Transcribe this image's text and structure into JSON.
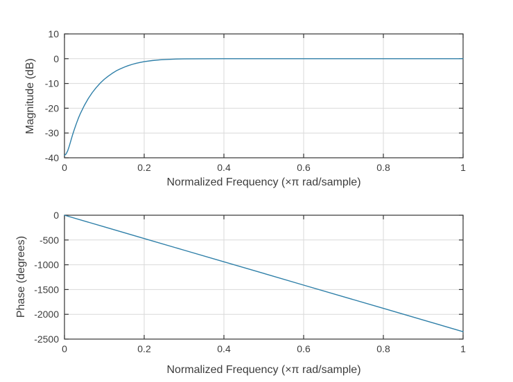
{
  "figure": {
    "background": "#ffffff",
    "line_color": "#2e7fa8",
    "grid_color": "#d9d9d9",
    "axis_color": "#333333",
    "text_color": "#3c3c3c",
    "tick_font_size": 14,
    "label_font_size": 16
  },
  "chart_data": [
    {
      "type": "line",
      "name": "magnitude-plot",
      "title": "",
      "xlabel": "Normalized Frequency (×π rad/sample)",
      "ylabel": "Magnitude (dB)",
      "xlim": [
        0,
        1
      ],
      "ylim": [
        -40,
        10
      ],
      "xticks": [
        0,
        0.2,
        0.4,
        0.6,
        0.8,
        1
      ],
      "xtick_labels": [
        "0",
        "0.2",
        "0.4",
        "0.6",
        "0.8",
        "1"
      ],
      "yticks": [
        10,
        0,
        -10,
        -20,
        -30,
        -40
      ],
      "ytick_labels": [
        "10",
        "0",
        "-10",
        "-20",
        "-30",
        "-40"
      ],
      "grid": true,
      "legend": null,
      "series": [
        {
          "name": "magnitude-response",
          "x": [
            0,
            0.004,
            0.008,
            0.012,
            0.016,
            0.02,
            0.025,
            0.03,
            0.035,
            0.04,
            0.05,
            0.06,
            0.07,
            0.08,
            0.09,
            0.1,
            0.11,
            0.12,
            0.13,
            0.14,
            0.15,
            0.16,
            0.17,
            0.18,
            0.19,
            0.2,
            0.22,
            0.24,
            0.26,
            0.28,
            0.3,
            0.35,
            0.4,
            0.5,
            0.6,
            0.7,
            0.8,
            0.9,
            1
          ],
          "y": [
            -39,
            -38.5,
            -37.2,
            -35.3,
            -33.1,
            -30.9,
            -28.4,
            -26.1,
            -24,
            -22.1,
            -18.8,
            -16,
            -13.6,
            -11.6,
            -9.8,
            -8.3,
            -7,
            -5.9,
            -4.9,
            -4.1,
            -3.4,
            -2.8,
            -2.3,
            -1.85,
            -1.5,
            -1.2,
            -0.75,
            -0.45,
            -0.27,
            -0.15,
            -0.08,
            -0.02,
            0,
            0,
            0,
            0,
            0,
            0,
            0
          ]
        }
      ]
    },
    {
      "type": "line",
      "name": "phase-plot",
      "title": "",
      "xlabel": "Normalized Frequency (×π rad/sample)",
      "ylabel": "Phase (degrees)",
      "xlim": [
        0,
        1
      ],
      "ylim": [
        -2500,
        0
      ],
      "xticks": [
        0,
        0.2,
        0.4,
        0.6,
        0.8,
        1
      ],
      "xtick_labels": [
        "0",
        "0.2",
        "0.4",
        "0.6",
        "0.8",
        "1"
      ],
      "yticks": [
        0,
        -500,
        -1000,
        -1500,
        -2000,
        -2500
      ],
      "ytick_labels": [
        "0",
        "-500",
        "-1000",
        "-1500",
        "-2000",
        "-2500"
      ],
      "grid": true,
      "legend": null,
      "series": [
        {
          "name": "phase-response",
          "x": [
            0,
            0.1,
            0.2,
            0.3,
            0.4,
            0.5,
            0.6,
            0.7,
            0.8,
            0.9,
            1
          ],
          "y": [
            0,
            -235,
            -470,
            -705,
            -940,
            -1175,
            -1410,
            -1645,
            -1880,
            -2115,
            -2350
          ]
        }
      ]
    }
  ]
}
